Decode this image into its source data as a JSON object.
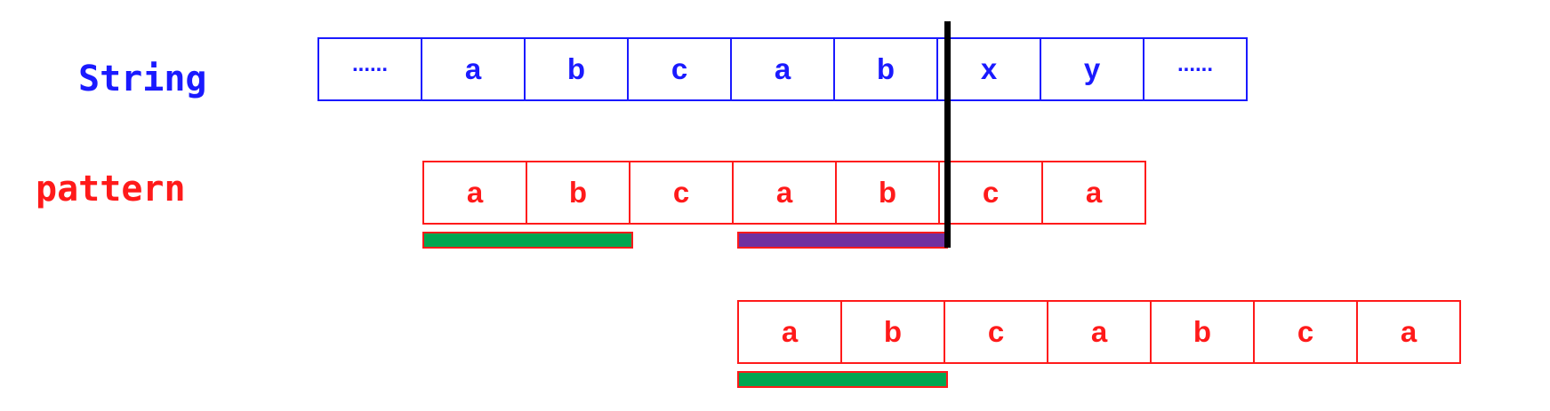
{
  "labels": {
    "string": "String",
    "pattern": "pattern"
  },
  "string_cells": [
    "......",
    "a",
    "b",
    "c",
    "a",
    "b",
    "x",
    "y",
    "......"
  ],
  "pattern_row_1": [
    "a",
    "b",
    "c",
    "a",
    "b",
    "c",
    "a"
  ],
  "pattern_row_2": [
    "a",
    "b",
    "c",
    "a",
    "b",
    "c",
    "a"
  ],
  "colors": {
    "string": "#1a1aff",
    "pattern": "#ff1a1a",
    "prefix_bar": "#00a651",
    "suffix_bar": "#7030a0",
    "mismatch_line": "#000000"
  }
}
